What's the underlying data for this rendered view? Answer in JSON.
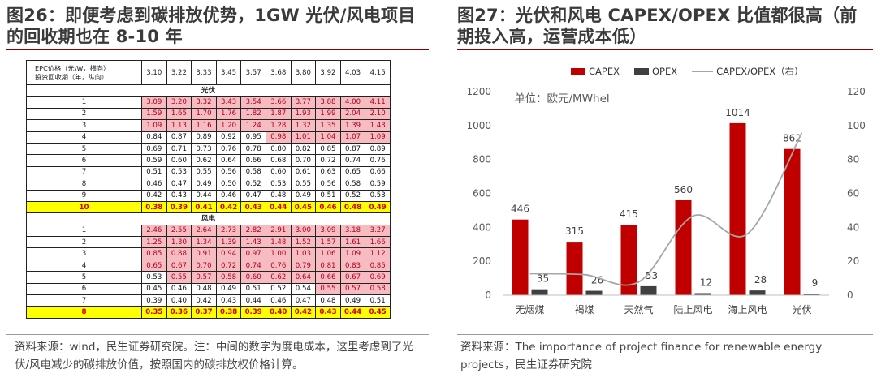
{
  "left": {
    "title": "图26：即便考虑到碳排放优势，1GW 光伏/风电项目的回收期也在 8-10 年",
    "source": "资料来源：wind，民生证券研究院。注：中间的数字为度电成本，这里考虑到了光伏/风电减少的碳排放价值，按照国内的碳排放权价格计算。",
    "table": {
      "header_label": "EPC价格（元/W，横向）\n投资回收期（年，纵向）",
      "epc_prices": [
        "3.10",
        "3.22",
        "3.33",
        "3.45",
        "3.57",
        "3.68",
        "3.80",
        "3.92",
        "4.03",
        "4.15"
      ],
      "sections": [
        {
          "name": "光伏",
          "rows": [
            {
              "year": "1",
              "values": [
                "3.09",
                "3.20",
                "3.32",
                "3.43",
                "3.54",
                "3.66",
                "3.77",
                "3.88",
                "4.00",
                "4.11"
              ],
              "shade": [
                1,
                1,
                1,
                1,
                1,
                1,
                1,
                1,
                1,
                1
              ],
              "highlight": false
            },
            {
              "year": "2",
              "values": [
                "1.59",
                "1.65",
                "1.70",
                "1.76",
                "1.82",
                "1.87",
                "1.93",
                "1.99",
                "2.04",
                "2.10"
              ],
              "shade": [
                1,
                1,
                1,
                1,
                1,
                1,
                1,
                1,
                1,
                1
              ],
              "highlight": false
            },
            {
              "year": "3",
              "values": [
                "1.09",
                "1.13",
                "1.16",
                "1.20",
                "1.24",
                "1.28",
                "1.32",
                "1.35",
                "1.39",
                "1.43"
              ],
              "shade": [
                1,
                1,
                1,
                1,
                1,
                1,
                1,
                1,
                1,
                1
              ],
              "highlight": false
            },
            {
              "year": "4",
              "values": [
                "0.84",
                "0.87",
                "0.89",
                "0.92",
                "0.95",
                "0.98",
                "1.01",
                "1.04",
                "1.07",
                "1.09"
              ],
              "shade": [
                0,
                0,
                0,
                0,
                0,
                1,
                1,
                1,
                1,
                1
              ],
              "highlight": false
            },
            {
              "year": "5",
              "values": [
                "0.69",
                "0.71",
                "0.73",
                "0.76",
                "0.78",
                "0.80",
                "0.82",
                "0.85",
                "0.87",
                "0.89"
              ],
              "shade": [
                0,
                0,
                0,
                0,
                0,
                0,
                0,
                0,
                0,
                0
              ],
              "highlight": false
            },
            {
              "year": "6",
              "values": [
                "0.59",
                "0.60",
                "0.62",
                "0.64",
                "0.66",
                "0.68",
                "0.70",
                "0.72",
                "0.74",
                "0.76"
              ],
              "shade": [
                0,
                0,
                0,
                0,
                0,
                0,
                0,
                0,
                0,
                0
              ],
              "highlight": false
            },
            {
              "year": "7",
              "values": [
                "0.51",
                "0.53",
                "0.55",
                "0.56",
                "0.58",
                "0.60",
                "0.61",
                "0.63",
                "0.65",
                "0.66"
              ],
              "shade": [
                0,
                0,
                0,
                0,
                0,
                0,
                0,
                0,
                0,
                0
              ],
              "highlight": false
            },
            {
              "year": "8",
              "values": [
                "0.46",
                "0.47",
                "0.49",
                "0.50",
                "0.52",
                "0.53",
                "0.55",
                "0.56",
                "0.58",
                "0.59"
              ],
              "shade": [
                0,
                0,
                0,
                0,
                0,
                0,
                0,
                0,
                0,
                0
              ],
              "highlight": false
            },
            {
              "year": "9",
              "values": [
                "0.42",
                "0.43",
                "0.44",
                "0.46",
                "0.47",
                "0.48",
                "0.49",
                "0.51",
                "0.52",
                "0.53"
              ],
              "shade": [
                0,
                0,
                0,
                0,
                0,
                0,
                0,
                0,
                0,
                0
              ],
              "highlight": false
            },
            {
              "year": "10",
              "values": [
                "0.38",
                "0.39",
                "0.41",
                "0.42",
                "0.43",
                "0.44",
                "0.45",
                "0.46",
                "0.48",
                "0.49"
              ],
              "shade": [
                0,
                0,
                0,
                0,
                0,
                0,
                0,
                0,
                0,
                0
              ],
              "highlight": true
            }
          ]
        },
        {
          "name": "风电",
          "rows": [
            {
              "year": "1",
              "values": [
                "2.46",
                "2.55",
                "2.64",
                "2.73",
                "2.82",
                "2.91",
                "3.00",
                "3.09",
                "3.18",
                "3.27"
              ],
              "shade": [
                1,
                1,
                1,
                1,
                1,
                1,
                1,
                1,
                1,
                1
              ],
              "highlight": false
            },
            {
              "year": "2",
              "values": [
                "1.25",
                "1.30",
                "1.34",
                "1.39",
                "1.43",
                "1.48",
                "1.52",
                "1.57",
                "1.61",
                "1.66"
              ],
              "shade": [
                1,
                1,
                1,
                1,
                1,
                1,
                1,
                1,
                1,
                1
              ],
              "highlight": false
            },
            {
              "year": "3",
              "values": [
                "0.85",
                "0.88",
                "0.91",
                "0.94",
                "0.97",
                "1.00",
                "1.03",
                "1.06",
                "1.09",
                "1.12"
              ],
              "shade": [
                1,
                1,
                1,
                1,
                1,
                1,
                1,
                1,
                1,
                1
              ],
              "highlight": false
            },
            {
              "year": "4",
              "values": [
                "0.65",
                "0.67",
                "0.70",
                "0.72",
                "0.74",
                "0.76",
                "0.79",
                "0.81",
                "0.83",
                "0.85"
              ],
              "shade": [
                1,
                1,
                1,
                1,
                1,
                1,
                1,
                1,
                1,
                1
              ],
              "highlight": false
            },
            {
              "year": "5",
              "values": [
                "0.53",
                "0.55",
                "0.57",
                "0.58",
                "0.60",
                "0.62",
                "0.64",
                "0.66",
                "0.67",
                "0.69"
              ],
              "shade": [
                0,
                1,
                1,
                1,
                1,
                1,
                1,
                1,
                1,
                1
              ],
              "highlight": false
            },
            {
              "year": "6",
              "values": [
                "0.45",
                "0.46",
                "0.48",
                "0.49",
                "0.51",
                "0.52",
                "0.54",
                "0.55",
                "0.57",
                "0.58"
              ],
              "shade": [
                0,
                0,
                0,
                0,
                0,
                0,
                0,
                1,
                1,
                1
              ],
              "highlight": false
            },
            {
              "year": "7",
              "values": [
                "0.39",
                "0.40",
                "0.42",
                "0.43",
                "0.44",
                "0.46",
                "0.47",
                "0.48",
                "0.49",
                "0.51"
              ],
              "shade": [
                0,
                0,
                0,
                0,
                0,
                0,
                0,
                0,
                0,
                0
              ],
              "highlight": false
            },
            {
              "year": "8",
              "values": [
                "0.35",
                "0.36",
                "0.37",
                "0.38",
                "0.39",
                "0.40",
                "0.42",
                "0.43",
                "0.44",
                "0.45"
              ],
              "shade": [
                0,
                0,
                0,
                0,
                0,
                0,
                0,
                0,
                0,
                0
              ],
              "highlight": true
            }
          ]
        }
      ]
    }
  },
  "right": {
    "title": "图27：光伏和风电 CAPEX/OPEX 比值都很高（前期投入高，运营成本低）",
    "source": "资料来源：The importance of project finance for renewable energy projects，民生证券研究院",
    "colors": {
      "capex": "#c00000",
      "opex": "#404040",
      "ratio": "#a6a6a6",
      "accent": "#8b0000"
    }
  },
  "chart_data": {
    "type": "bar",
    "unit_label": "单位：欧元/MWhel",
    "categories": [
      "无烟煤",
      "褐煤",
      "天然气",
      "陆上风电",
      "海上风电",
      "光伏"
    ],
    "series": [
      {
        "name": "CAPEX",
        "axis": "left",
        "values": [
          446,
          315,
          415,
          560,
          1014,
          862
        ]
      },
      {
        "name": "OPEX",
        "axis": "left",
        "values": [
          35,
          26,
          53,
          12,
          28,
          9
        ]
      },
      {
        "name": "CAPEX/OPEX（右）",
        "type": "line",
        "axis": "right",
        "values": [
          12.7,
          12.1,
          7.8,
          46.7,
          36.2,
          95.8
        ]
      }
    ],
    "ylim_left": [
      0,
      1200
    ],
    "yticks_left": [
      "0",
      "200",
      "400",
      "600",
      "800",
      "1000",
      "1200"
    ],
    "ylim_right": [
      0,
      120
    ],
    "yticks_right": [
      "0",
      "20",
      "40",
      "60",
      "80",
      "100",
      "120"
    ],
    "legend_position": "top",
    "grid": false
  }
}
